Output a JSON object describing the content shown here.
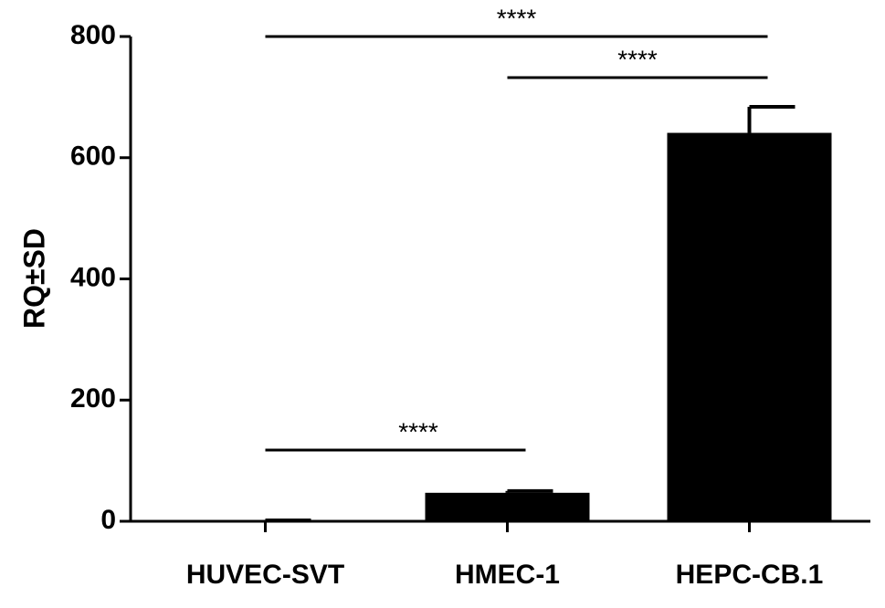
{
  "chart_data": {
    "type": "bar",
    "y_label": "RQ±SD",
    "categories": [
      "HUVEC-SVT",
      "HMEC-1",
      "HEPC-CB.1"
    ],
    "values": [
      1,
      47,
      641
    ],
    "errors": [
      0.5,
      3,
      43
    ],
    "color": "#000000",
    "ylim": [
      0,
      800
    ],
    "yticks": [
      0,
      200,
      400,
      600,
      800
    ],
    "annotations": [
      {
        "text": "****",
        "from": "HUVEC-SVT",
        "to": "HEPC-CB.1"
      },
      {
        "text": "****",
        "from": "HMEC-1",
        "to": "HEPC-CB.1"
      },
      {
        "text": "****",
        "from": "HUVEC-SVT",
        "to": "HMEC-1"
      }
    ]
  }
}
